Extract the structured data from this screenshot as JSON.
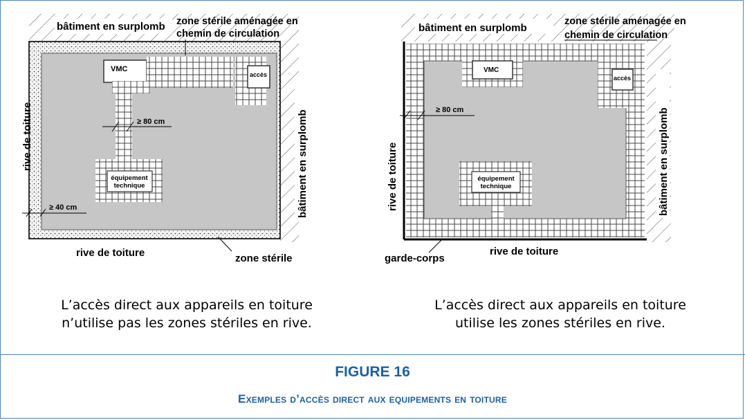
{
  "left_diagram": {
    "label_top_left": "bâtiment en surplomb",
    "label_top_right_1": "zone stérile aménagée en",
    "label_top_right_2": "chemin de circulation",
    "label_right": "bâtiment en surplomb",
    "label_left": "rive de toiture",
    "label_bottom": "rive de toiture",
    "label_bottom_right": "zone stérile",
    "box_vmc": "VMC",
    "box_acces": "accès",
    "box_equip_1": "équipement",
    "box_equip_2": "technique",
    "dim_80": "≥ 80 cm",
    "dim_40": "≥ 40 cm"
  },
  "right_diagram": {
    "label_top_left": "bâtiment en surplomb",
    "label_top_right_1": "zone stérile aménagée en",
    "label_top_right_2": "chemin de circulation",
    "label_right": "bâtiment en surplomb",
    "label_left": "rive de toiture",
    "label_bottom": "rive de toiture",
    "label_bottom_left": "garde-corps",
    "box_vmc": "VMC",
    "box_acces": "accès",
    "box_equip_1": "équipement",
    "box_equip_2": "technique",
    "dim_80": "≥ 80 cm"
  },
  "captions": {
    "left_line_1": "L’accès direct aux appareils en toiture",
    "left_line_2": "n’utilise pas les zones stériles en rive.",
    "right_line_1": "L’accès direct aux appareils en toiture",
    "right_line_2": "utilise les zones stériles en rive."
  },
  "figure": {
    "number": "FIGURE 16",
    "title": "Exemples d’accès direct aux equipements en toiture"
  },
  "colors": {
    "border": "#4a83bd",
    "title": "#1c5fa8",
    "roof_fill": "#c6c6c6"
  }
}
